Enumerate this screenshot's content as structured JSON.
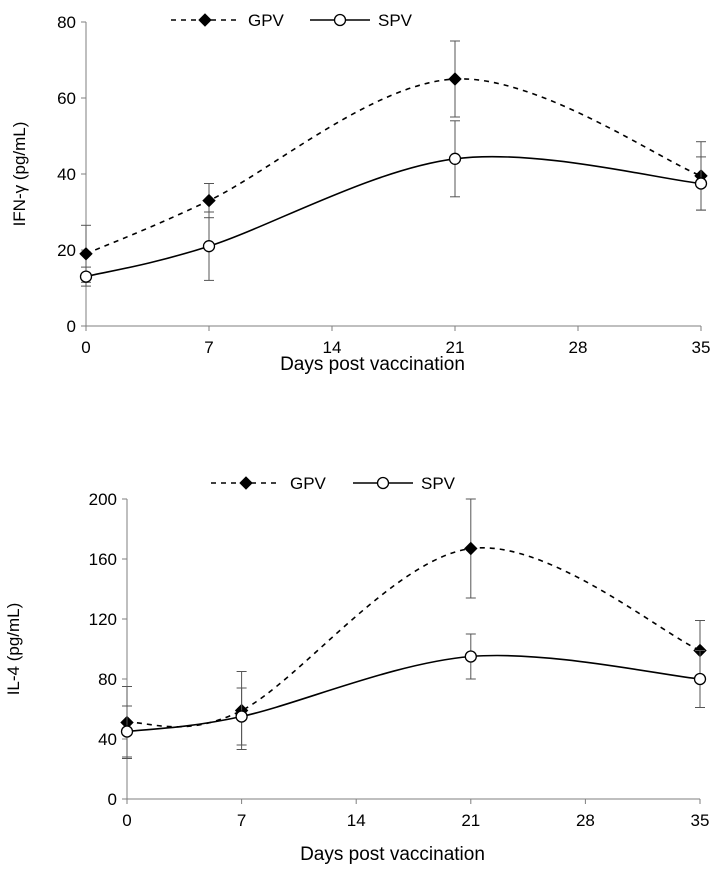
{
  "chart_data": [
    {
      "type": "line",
      "xlabel": "Days post vaccination",
      "ylabel": "IFN-γ (pg/mL)",
      "xlim": [
        0,
        35
      ],
      "ylim": [
        0,
        80
      ],
      "xticks": [
        "0",
        "7",
        "14",
        "21",
        "28",
        "35"
      ],
      "yticks": [
        "0",
        "20",
        "40",
        "60",
        "80"
      ],
      "legend_position": "top",
      "grid": false,
      "series": [
        {
          "name": "GPV",
          "x": [
            0,
            7,
            21,
            35
          ],
          "values": [
            19,
            33,
            65,
            39.5
          ],
          "error": [
            7.5,
            4.5,
            10,
            9
          ],
          "line_style": "dashed",
          "marker": "filled-diamond"
        },
        {
          "name": "SPV",
          "x": [
            0,
            7,
            21,
            35
          ],
          "values": [
            13,
            21,
            44,
            37.5
          ],
          "error": [
            2.5,
            9,
            10,
            7
          ],
          "line_style": "solid",
          "marker": "open-circle"
        }
      ]
    },
    {
      "type": "line",
      "xlabel": "Days post vaccination",
      "ylabel": "IL-4 (pg/mL)",
      "xlim": [
        0,
        35
      ],
      "ylim": [
        0,
        200
      ],
      "xticks": [
        "0",
        "7",
        "14",
        "21",
        "28",
        "35"
      ],
      "yticks": [
        "0",
        "40",
        "80",
        "120",
        "160",
        "200"
      ],
      "legend_position": "top",
      "grid": false,
      "series": [
        {
          "name": "GPV",
          "x": [
            0,
            7,
            21,
            35
          ],
          "values": [
            51,
            59,
            167,
            99
          ],
          "error": [
            24,
            26,
            33,
            20
          ],
          "line_style": "dashed",
          "marker": "filled-diamond"
        },
        {
          "name": "SPV",
          "x": [
            0,
            7,
            21,
            35
          ],
          "values": [
            45,
            55,
            95,
            80
          ],
          "error": [
            17,
            19,
            15,
            19
          ],
          "line_style": "solid",
          "marker": "open-circle"
        }
      ]
    }
  ]
}
